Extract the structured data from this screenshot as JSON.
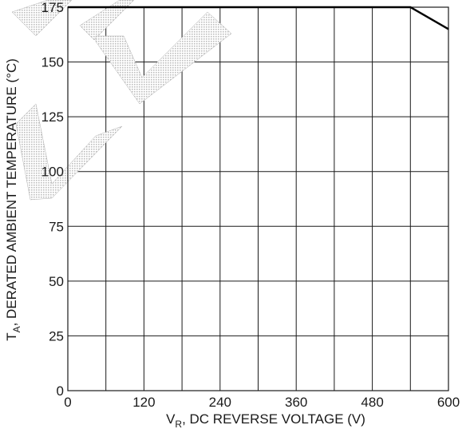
{
  "chart_data": {
    "type": "line",
    "title": "",
    "xlabel": {
      "main": "V",
      "sub": "R",
      "rest": ", DC REVERSE VOLTAGE (V)"
    },
    "ylabel": {
      "main": "T",
      "sub": "A",
      "rest": ", DERATED AMBIENT TEMPERATURE (°C)"
    },
    "xlim": [
      0,
      600
    ],
    "ylim": [
      0,
      175
    ],
    "x_major_ticks": [
      0,
      120,
      240,
      360,
      480,
      600
    ],
    "x_tick_labels": [
      "0",
      "120",
      "240",
      "360",
      "480",
      "600"
    ],
    "x_minor_grid": [
      60,
      180,
      300,
      420,
      540
    ],
    "y_ticks": [
      0,
      25,
      50,
      75,
      100,
      125,
      150,
      175
    ],
    "y_tick_labels": [
      "0",
      "25",
      "50",
      "75",
      "100",
      "125",
      "150",
      "175"
    ],
    "grid": true,
    "series": [
      {
        "x": [
          0,
          540,
          600
        ],
        "y": [
          175,
          175,
          165
        ]
      }
    ],
    "watermark": "LE",
    "colors": {
      "line": "#000000",
      "grid": "#1a1a1a",
      "watermark": "#d8d8d8"
    }
  }
}
